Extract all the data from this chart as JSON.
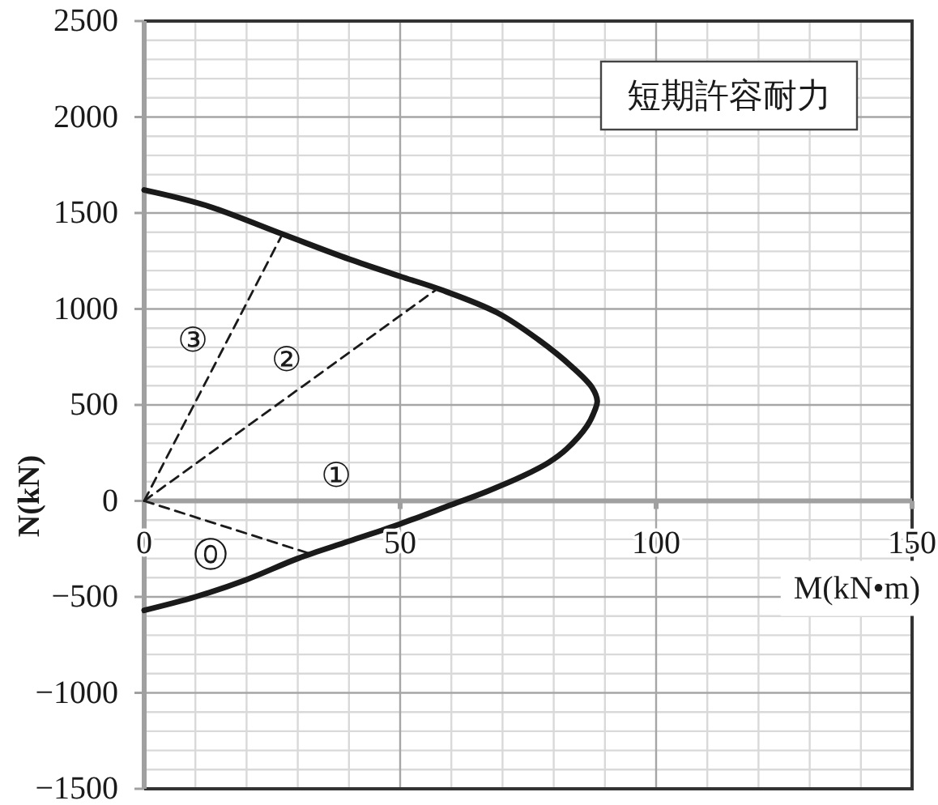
{
  "chart_data": {
    "type": "line",
    "title": "短期許容耐力",
    "xlabel": "M(kN•m)",
    "ylabel": "N(kN)",
    "xlim": [
      0,
      150
    ],
    "ylim": [
      -1500,
      2500
    ],
    "xticks": [
      0,
      {
        "value": 10,
        "label": null
      },
      {
        "value": 20,
        "label": null
      },
      {
        "value": 30,
        "label": null
      },
      {
        "value": 40,
        "label": null
      },
      50,
      {
        "value": 60,
        "label": null
      },
      {
        "value": 70,
        "label": null
      },
      {
        "value": 80,
        "label": null
      },
      {
        "value": 90,
        "label": null
      },
      100,
      {
        "value": 110,
        "label": null
      },
      {
        "value": 120,
        "label": null
      },
      {
        "value": 130,
        "label": null
      },
      {
        "value": 140,
        "label": null
      },
      150
    ],
    "yticks": [
      -1500,
      {
        "value": -1400,
        "label": null
      },
      {
        "value": -1300,
        "label": null
      },
      {
        "value": -1200,
        "label": null
      },
      {
        "value": -1100,
        "label": null
      },
      -1000,
      {
        "value": -900,
        "label": null
      },
      {
        "value": -800,
        "label": null
      },
      {
        "value": -700,
        "label": null
      },
      {
        "value": -600,
        "label": null
      },
      -500,
      {
        "value": -400,
        "label": null
      },
      {
        "value": -300,
        "label": null
      },
      {
        "value": -200,
        "label": null
      },
      {
        "value": -100,
        "label": null
      },
      0,
      {
        "value": 100,
        "label": null
      },
      {
        "value": 200,
        "label": null
      },
      {
        "value": 300,
        "label": null
      },
      {
        "value": 400,
        "label": null
      },
      500,
      {
        "value": 600,
        "label": null
      },
      {
        "value": 700,
        "label": null
      },
      {
        "value": 800,
        "label": null
      },
      {
        "value": 900,
        "label": null
      },
      1000,
      {
        "value": 1100,
        "label": null
      },
      {
        "value": 1200,
        "label": null
      },
      {
        "value": 1300,
        "label": null
      },
      {
        "value": 1400,
        "label": null
      },
      1500,
      {
        "value": 1600,
        "label": null
      },
      {
        "value": 1700,
        "label": null
      },
      {
        "value": 1800,
        "label": null
      },
      {
        "value": 1900,
        "label": null
      },
      2000,
      {
        "value": 2100,
        "label": null
      },
      {
        "value": 2200,
        "label": null
      },
      {
        "value": 2300,
        "label": null
      },
      {
        "value": 2400,
        "label": null
      },
      2500
    ],
    "grid": true,
    "series": [
      {
        "color": "#1a1a1a",
        "line_style": "solid",
        "x": [
          0,
          12,
          27,
          40,
          50,
          58,
          69,
          77,
          83.5,
          87.5,
          88.5,
          88,
          86.5,
          82.5,
          79,
          74,
          67,
          60,
          50,
          40,
          30,
          20,
          10,
          0
        ],
        "values": [
          1620,
          1540,
          1390,
          1260,
          1170,
          1100,
          980,
          840,
          700,
          590,
          520,
          470,
          390,
          270,
          200,
          130,
          50,
          -20,
          -120,
          -210,
          -300,
          -410,
          -500,
          -570
        ]
      },
      {
        "name": "⓪",
        "color": "#1a1a1a",
        "line_style": "dashed",
        "x": [
          0,
          33
        ],
        "values": [
          0,
          -280
        ]
      },
      {
        "name": "②",
        "color": "#1a1a1a",
        "line_style": "dashed",
        "x": [
          0,
          57
        ],
        "values": [
          0,
          1100
        ]
      },
      {
        "name": "③",
        "color": "#1a1a1a",
        "line_style": "dashed",
        "x": [
          0,
          27
        ],
        "values": [
          0,
          1390
        ]
      }
    ],
    "annotations": [
      "①"
    ]
  }
}
